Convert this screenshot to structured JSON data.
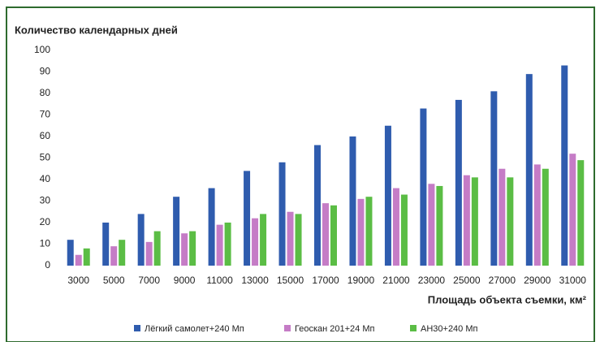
{
  "chart_data": {
    "type": "bar",
    "title": "Количество календарных дней",
    "x_label": "Площадь объекта съемки, км²",
    "categories": [
      "3000",
      "5000",
      "7000",
      "9000",
      "11000",
      "13000",
      "15000",
      "17000",
      "19000",
      "21000",
      "23000",
      "25000",
      "27000",
      "29000",
      "31000"
    ],
    "series": [
      {
        "name": "Лёгкий самолет+240 Мп",
        "color": "#2f5cae",
        "values": [
          12,
          20,
          24,
          32,
          36,
          44,
          48,
          56,
          60,
          65,
          73,
          77,
          81,
          89,
          93
        ]
      },
      {
        "name": "Геоскан 201+24 Мп",
        "color": "#c57cc6",
        "values": [
          5,
          9,
          11,
          15,
          19,
          22,
          25,
          29,
          31,
          36,
          38,
          42,
          45,
          47,
          52
        ]
      },
      {
        "name": "АН30+240 Мп",
        "color": "#5bbd45",
        "values": [
          8,
          12,
          16,
          16,
          20,
          24,
          24,
          28,
          32,
          33,
          37,
          41,
          41,
          45,
          49
        ]
      }
    ],
    "ylim": [
      0,
      100
    ],
    "yticks": [
      0,
      10,
      20,
      30,
      40,
      50,
      60,
      70,
      80,
      90,
      100
    ],
    "grid": false
  }
}
